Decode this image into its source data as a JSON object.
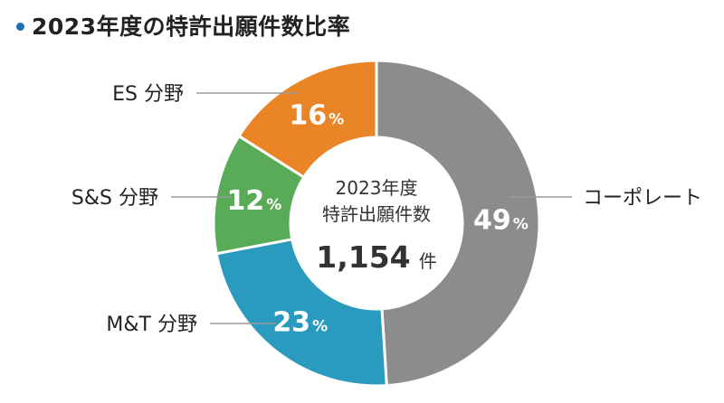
{
  "page": {
    "title": "2023年度の特許出願件数比率"
  },
  "chart_data": {
    "type": "pie",
    "variant": "donut",
    "title": "2023年度の特許出願件数比率",
    "center_text": {
      "line1": "2023年度",
      "line2": "特許出願件数",
      "total_value": "1,154",
      "total_unit": "件"
    },
    "slices": [
      {
        "label": "コーポレート",
        "value": 49,
        "unit": "%",
        "color": "#8c8c8c"
      },
      {
        "label": "M&T 分野",
        "value": 23,
        "unit": "%",
        "color": "#2a9bbf"
      },
      {
        "label": "S&S 分野",
        "value": 12,
        "unit": "%",
        "color": "#5aab58"
      },
      {
        "label": "ES 分野",
        "value": 16,
        "unit": "%",
        "color": "#e98526"
      }
    ],
    "start": "top",
    "direction": "clockwise"
  }
}
